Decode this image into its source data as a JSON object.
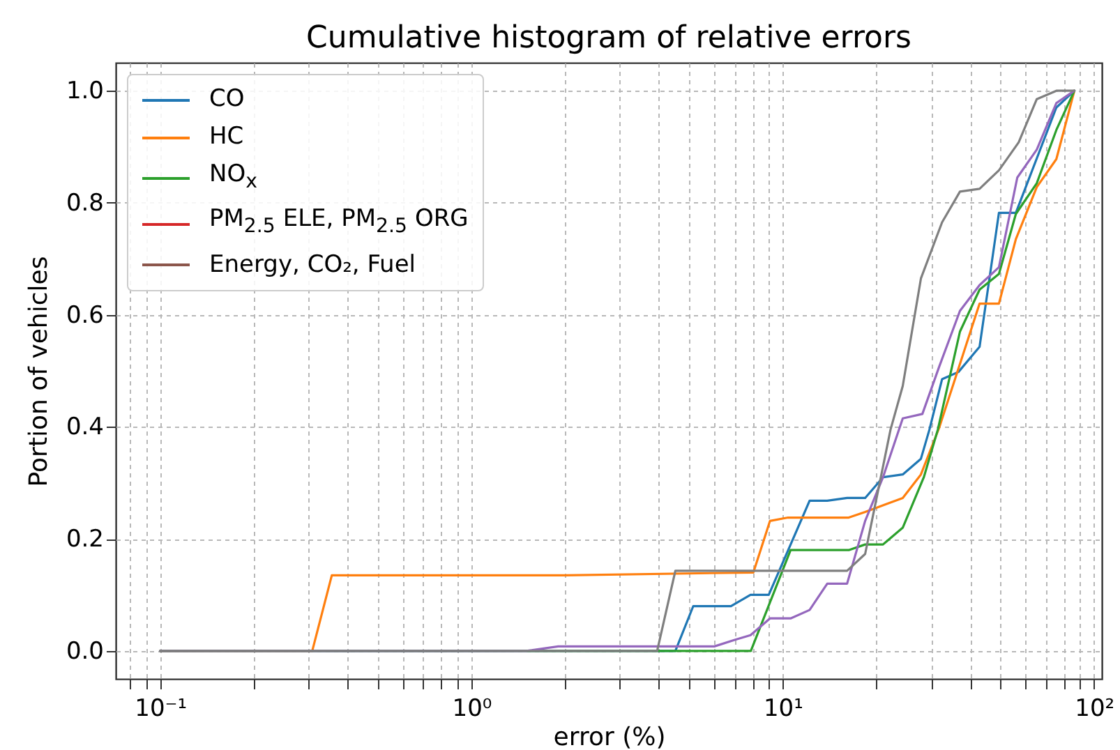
{
  "chart_data": {
    "type": "line",
    "title": "Cumulative histogram of relative errors",
    "xlabel": "error (%)",
    "ylabel": "Portion of vehicles",
    "log": "x",
    "grid": true,
    "legend": "top left",
    "line_style": "solid",
    "marker": "none",
    "xlim": [
      0.072,
      106
    ],
    "ylim": [
      -0.05,
      1.05
    ],
    "xticks": [
      {
        "value": 0.08,
        "label": null
      },
      {
        "value": 0.09,
        "label": null
      },
      {
        "value": 0.1,
        "label": "10⁻¹"
      },
      {
        "value": 0.2,
        "label": null
      },
      {
        "value": 0.3,
        "label": null
      },
      {
        "value": 0.4,
        "label": null
      },
      {
        "value": 0.5,
        "label": null
      },
      {
        "value": 0.6,
        "label": null
      },
      {
        "value": 0.7,
        "label": null
      },
      {
        "value": 0.8,
        "label": null
      },
      {
        "value": 0.9,
        "label": null
      },
      {
        "value": 1,
        "label": "10⁰"
      },
      {
        "value": 2,
        "label": null
      },
      {
        "value": 3,
        "label": null
      },
      {
        "value": 4,
        "label": null
      },
      {
        "value": 5,
        "label": null
      },
      {
        "value": 6,
        "label": null
      },
      {
        "value": 7,
        "label": null
      },
      {
        "value": 8,
        "label": null
      },
      {
        "value": 9,
        "label": null
      },
      {
        "value": 10,
        "label": "10¹"
      },
      {
        "value": 20,
        "label": null
      },
      {
        "value": 30,
        "label": null
      },
      {
        "value": 40,
        "label": null
      },
      {
        "value": 50,
        "label": null
      },
      {
        "value": 60,
        "label": null
      },
      {
        "value": 70,
        "label": null
      },
      {
        "value": 80,
        "label": null
      },
      {
        "value": 90,
        "label": null
      },
      {
        "value": 100,
        "label": "10²"
      }
    ],
    "yticks": [
      {
        "value": 0,
        "label": "0.0"
      },
      {
        "value": 0.2,
        "label": "0.2"
      },
      {
        "value": 0.4,
        "label": "0.4"
      },
      {
        "value": 0.6,
        "label": "0.6"
      },
      {
        "value": 0.8,
        "label": "0.8"
      },
      {
        "value": 1,
        "label": "1.0"
      }
    ],
    "series": [
      {
        "name": "CO",
        "color": "#1f77b4",
        "x": [
          0.1,
          4.52,
          5.16,
          6.82,
          7.88,
          9.02,
          12.2,
          13.9,
          16.1,
          18.4,
          21.0,
          24.3,
          27.8,
          29.6,
          32.5,
          36.7,
          42.9,
          49.5,
          56.1,
          75.7,
          86.5
        ],
        "values": [
          0,
          0,
          0.08,
          0.08,
          0.1,
          0.1,
          0.268,
          0.268,
          0.273,
          0.273,
          0.31,
          0.315,
          0.343,
          0.395,
          0.485,
          0.498,
          0.543,
          0.782,
          0.782,
          0.97,
          1.0
        ]
      },
      {
        "name": "HC",
        "color": "#ff7f0e",
        "x": [
          0.1,
          0.308,
          0.356,
          2.0,
          8.05,
          9.1,
          10.4,
          16.3,
          18.4,
          21.5,
          24.3,
          27.8,
          31.8,
          42.9,
          49.5,
          56.1,
          65.5,
          75.7,
          86.5
        ],
        "values": [
          0,
          0,
          0.135,
          0.135,
          0.14,
          0.232,
          0.238,
          0.238,
          0.248,
          0.262,
          0.273,
          0.315,
          0.398,
          0.62,
          0.62,
          0.735,
          0.828,
          0.878,
          1.0
        ]
      },
      {
        "name": "NO$_{x}$",
        "color": "#2ca02c",
        "x": [
          0.1,
          7.9,
          10.6,
          16.3,
          18.4,
          21.0,
          24.3,
          28.4,
          31.5,
          37.1,
          42.9,
          49.5,
          56.1,
          65.5,
          75.7,
          86.5
        ],
        "values": [
          0,
          0,
          0.18,
          0.18,
          0.19,
          0.19,
          0.22,
          0.31,
          0.395,
          0.57,
          0.645,
          0.673,
          0.78,
          0.835,
          0.93,
          1.0
        ]
      },
      {
        "name": "PM$_{2.5}$ ELE, PM$_{2.5}$ ORG",
        "color": "#d62728"
      },
      {
        "name": "Energy, CO₂, Fuel",
        "color": "#8c564b"
      },
      {
        "color": "#9467bd",
        "x": [
          0.1,
          1.5,
          1.9,
          6.03,
          7.04,
          7.88,
          9.1,
          10.6,
          12.2,
          13.9,
          16.1,
          18.4,
          21.0,
          24.3,
          28.1,
          31.8,
          37.1,
          42.9,
          49.5,
          56.7,
          65.5,
          75.7,
          86.5
        ],
        "values": [
          0,
          0,
          0.008,
          0.008,
          0.02,
          0.028,
          0.058,
          0.058,
          0.073,
          0.12,
          0.12,
          0.232,
          0.31,
          0.415,
          0.423,
          0.507,
          0.607,
          0.653,
          0.685,
          0.845,
          0.895,
          0.978,
          1.0
        ]
      },
      {
        "color": "#7f7f7f",
        "x": [
          0.1,
          3.95,
          4.52,
          16.1,
          18.4,
          22.2,
          24.3,
          27.8,
          32.5,
          37.1,
          42.9,
          49.5,
          57.3,
          65.5,
          75.7,
          86.5
        ],
        "values": [
          0,
          0,
          0.143,
          0.143,
          0.173,
          0.395,
          0.473,
          0.665,
          0.765,
          0.82,
          0.825,
          0.858,
          0.908,
          0.985,
          1.0,
          1.0
        ]
      }
    ]
  }
}
